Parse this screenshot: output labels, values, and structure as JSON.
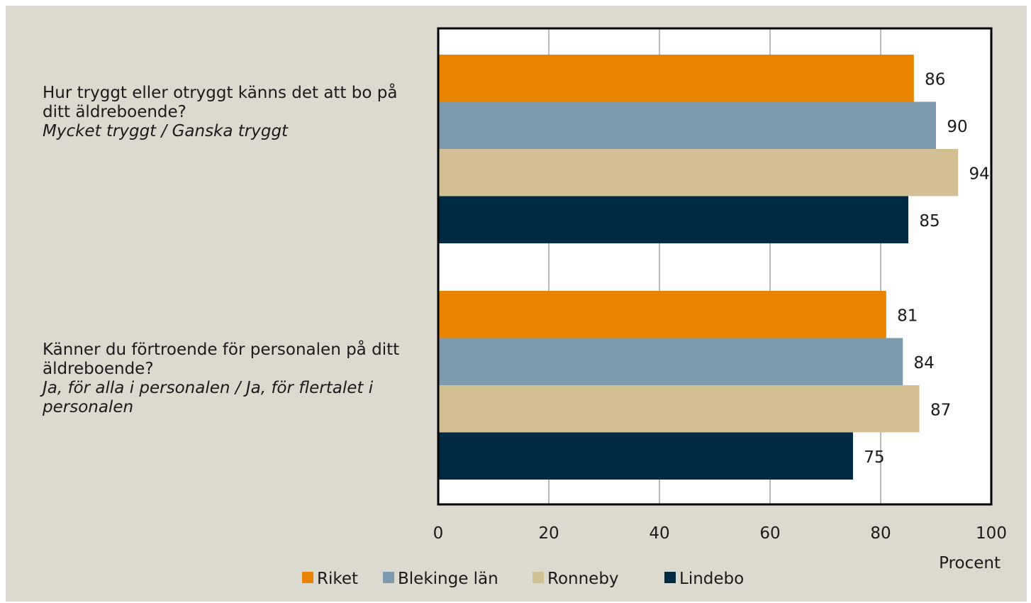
{
  "chart_data": {
    "type": "bar",
    "orientation": "horizontal",
    "categories": [
      {
        "question": "Hur tryggt eller otryggt känns det att bo på ditt äldreboende?",
        "answer": "Mycket tryggt / Ganska tryggt"
      },
      {
        "question": "Känner du förtroende för personalen på ditt äldreboende?",
        "answer": "Ja, för alla i personalen / Ja, för flertalet i personalen"
      }
    ],
    "series": [
      {
        "name": "Riket",
        "color": "#e88400",
        "values": [
          86,
          81
        ]
      },
      {
        "name": "Blekinge län",
        "color": "#7d9aac",
        "values": [
          90,
          84
        ]
      },
      {
        "name": "Ronneby",
        "color": "#d3bf94",
        "values": [
          94,
          87
        ]
      },
      {
        "name": "Lindebo",
        "color": "#002b45",
        "values": [
          85,
          75
        ]
      }
    ],
    "xlim": [
      0,
      100
    ],
    "xticks": [
      0,
      20,
      40,
      60,
      80,
      100
    ],
    "xlabel": "Procent",
    "grid": true,
    "legend": "bottom"
  }
}
